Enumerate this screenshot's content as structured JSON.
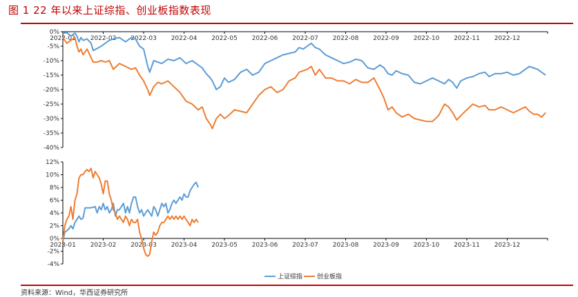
{
  "figure": {
    "title": "图 1 22 年以来上证综指、创业板指数表现",
    "source": "资料来源：Wind，华西证券研究所"
  },
  "colors": {
    "series1": "#5b9bd5",
    "series2": "#ed7d31",
    "accent": "#c00000",
    "axis": "#000000"
  },
  "legend": [
    "上证综指",
    "创业板指"
  ],
  "chart_data": [
    {
      "type": "line",
      "title": "",
      "xlabel": "",
      "ylabel": "",
      "ylim": [
        -40,
        0
      ],
      "y_unit": "%",
      "y_ticks": [
        0,
        -5,
        -10,
        -15,
        -20,
        -25,
        -30,
        -35,
        -40
      ],
      "x_ticks": [
        "2022-01",
        "2022-02",
        "2022-03",
        "2022-04",
        "2022-05",
        "2022-06",
        "2022-07",
        "2022-08",
        "2022-09",
        "2022-10",
        "2022-11",
        "2022-12"
      ],
      "series": [
        {
          "name": "上证综指",
          "x": [
            0.0,
            0.1,
            0.2,
            0.3,
            0.35,
            0.4,
            0.45,
            0.5,
            0.6,
            0.7,
            0.75,
            0.85,
            0.95,
            1.05,
            1.15,
            1.25,
            1.4,
            1.55,
            1.7,
            1.8,
            1.9,
            2.0,
            2.1,
            2.15,
            2.25,
            2.35,
            2.45,
            2.6,
            2.75,
            2.9,
            3.05,
            3.2,
            3.35,
            3.45,
            3.55,
            3.65,
            3.7,
            3.8,
            3.9,
            4.0,
            4.1,
            4.25,
            4.4,
            4.55,
            4.7,
            4.85,
            5.0,
            5.15,
            5.3,
            5.45,
            5.6,
            5.75,
            5.85,
            5.95,
            6.05,
            6.15,
            6.25,
            6.35,
            6.5,
            6.65,
            6.8,
            6.95,
            7.1,
            7.25,
            7.4,
            7.55,
            7.7,
            7.85,
            7.95,
            8.05,
            8.15,
            8.25,
            8.4,
            8.55,
            8.7,
            8.85,
            9.0,
            9.15,
            9.3,
            9.45,
            9.55,
            9.65,
            9.75,
            9.85,
            10.0,
            10.15,
            10.3,
            10.45,
            10.55,
            10.7,
            10.85,
            11.0,
            11.15,
            11.3,
            11.45,
            11.55,
            11.65,
            11.75,
            11.85,
            11.95
          ],
          "values": [
            -0.5,
            -0.3,
            -1.5,
            -0.5,
            -1.5,
            -3.5,
            -2.0,
            -3.0,
            -2.5,
            -4.0,
            -6.5,
            -5.8,
            -5.0,
            -4.0,
            -3.0,
            -2.5,
            -2.0,
            -3.5,
            -2.0,
            -2.5,
            -5.0,
            -6.0,
            -12.0,
            -14.0,
            -10.0,
            -10.5,
            -11.0,
            -9.5,
            -10.0,
            -9.0,
            -11.0,
            -10.0,
            -11.5,
            -12.5,
            -14.5,
            -16.0,
            -17.0,
            -20.0,
            -19.0,
            -16.0,
            -17.5,
            -16.5,
            -14.0,
            -13.0,
            -15.0,
            -14.0,
            -11.0,
            -10.0,
            -9.0,
            -8.0,
            -7.5,
            -7.0,
            -5.5,
            -6.0,
            -5.0,
            -4.0,
            -5.5,
            -6.0,
            -8.0,
            -9.0,
            -10.0,
            -11.0,
            -10.5,
            -9.5,
            -10.0,
            -12.5,
            -13.0,
            -11.5,
            -12.5,
            -14.5,
            -15.0,
            -13.5,
            -14.5,
            -15.0,
            -17.5,
            -18.0,
            -17.0,
            -16.0,
            -17.0,
            -18.0,
            -16.5,
            -17.5,
            -19.5,
            -17.0,
            -16.0,
            -15.5,
            -14.5,
            -14.0,
            -15.5,
            -14.5,
            -14.5,
            -14.0,
            -15.0,
            -14.5,
            -13.0,
            -12.0,
            -12.5,
            -13.0,
            -14.0,
            -15.0
          ]
        },
        {
          "name": "创业板指",
          "x": [
            0.0,
            0.1,
            0.2,
            0.3,
            0.35,
            0.4,
            0.45,
            0.5,
            0.6,
            0.7,
            0.75,
            0.85,
            0.95,
            1.05,
            1.15,
            1.25,
            1.4,
            1.55,
            1.7,
            1.8,
            1.9,
            2.0,
            2.1,
            2.15,
            2.25,
            2.35,
            2.45,
            2.6,
            2.75,
            2.9,
            3.05,
            3.2,
            3.35,
            3.45,
            3.55,
            3.65,
            3.7,
            3.8,
            3.9,
            4.0,
            4.1,
            4.25,
            4.4,
            4.55,
            4.7,
            4.85,
            5.0,
            5.15,
            5.3,
            5.45,
            5.6,
            5.75,
            5.85,
            5.95,
            6.05,
            6.15,
            6.25,
            6.35,
            6.5,
            6.65,
            6.8,
            6.95,
            7.1,
            7.25,
            7.4,
            7.55,
            7.7,
            7.85,
            7.95,
            8.05,
            8.15,
            8.25,
            8.4,
            8.55,
            8.7,
            8.85,
            9.0,
            9.15,
            9.3,
            9.45,
            9.55,
            9.65,
            9.75,
            9.85,
            10.0,
            10.15,
            10.3,
            10.45,
            10.55,
            10.7,
            10.85,
            11.0,
            11.15,
            11.3,
            11.45,
            11.55,
            11.65,
            11.75,
            11.85,
            11.95
          ],
          "values": [
            -2.0,
            -4.0,
            -3.0,
            -2.0,
            -5.0,
            -7.0,
            -6.0,
            -8.0,
            -6.0,
            -9.0,
            -10.5,
            -10.5,
            -10.0,
            -10.5,
            -10.0,
            -13.0,
            -11.0,
            -12.0,
            -13.0,
            -12.5,
            -15.0,
            -17.0,
            -20.0,
            -22.0,
            -19.0,
            -17.5,
            -18.0,
            -17.0,
            -19.0,
            -21.0,
            -24.0,
            -25.0,
            -27.0,
            -26.0,
            -30.0,
            -32.0,
            -33.5,
            -30.0,
            -28.5,
            -30.0,
            -29.0,
            -27.0,
            -27.5,
            -28.0,
            -25.0,
            -22.0,
            -20.0,
            -19.0,
            -21.0,
            -20.0,
            -17.0,
            -16.0,
            -14.0,
            -13.5,
            -13.0,
            -12.0,
            -15.0,
            -13.0,
            -16.0,
            -16.0,
            -17.0,
            -17.0,
            -18.0,
            -16.5,
            -17.5,
            -17.5,
            -16.0,
            -20.0,
            -23.0,
            -27.0,
            -26.0,
            -28.0,
            -29.5,
            -28.5,
            -30.0,
            -30.5,
            -31.0,
            -31.0,
            -29.0,
            -25.0,
            -26.0,
            -28.0,
            -30.5,
            -29.0,
            -27.0,
            -25.0,
            -26.0,
            -25.5,
            -27.0,
            -27.0,
            -26.0,
            -27.0,
            -28.0,
            -27.0,
            -26.0,
            -27.5,
            -28.5,
            -28.5,
            -29.5,
            -28.0
          ]
        }
      ]
    },
    {
      "type": "line",
      "title": "",
      "xlabel": "",
      "ylabel": "",
      "ylim": [
        -4,
        12
      ],
      "y_unit": "%",
      "y_ticks": [
        12,
        10,
        8,
        6,
        4,
        2,
        0,
        -2,
        -4
      ],
      "x_ticks": [
        "2023-01",
        "2023-02",
        "2023-03",
        "2023-04",
        "2023-05",
        "2023-06",
        "2023-07",
        "2023-08",
        "2023-09",
        "2023-10",
        "2023-11",
        "2023-12"
      ],
      "series": [
        {
          "name": "上证综指",
          "x": [
            0.0,
            0.05,
            0.1,
            0.15,
            0.2,
            0.25,
            0.3,
            0.35,
            0.4,
            0.45,
            0.5,
            0.55,
            0.6,
            0.65,
            0.7,
            0.75,
            0.8,
            0.85,
            0.9,
            0.95,
            1.0,
            1.05,
            1.1,
            1.15,
            1.2,
            1.25,
            1.3,
            1.35,
            1.4,
            1.45,
            1.5,
            1.55,
            1.6,
            1.65,
            1.7,
            1.75,
            1.8,
            1.85,
            1.9,
            1.95,
            2.0,
            2.05,
            2.1,
            2.15,
            2.2,
            2.25,
            2.3,
            2.35,
            2.4,
            2.45,
            2.5,
            2.55,
            2.6,
            2.65,
            2.7,
            2.75,
            2.8,
            2.85,
            2.9,
            2.95,
            3.0,
            3.05,
            3.1,
            3.15,
            3.2,
            3.25,
            3.3,
            3.35
          ],
          "values": [
            -0.5,
            1.0,
            1.2,
            1.5,
            2.0,
            1.5,
            2.5,
            3.0,
            3.5,
            3.0,
            3.2,
            4.8,
            4.8,
            4.8,
            4.8,
            4.9,
            5.0,
            4.0,
            5.0,
            4.5,
            5.5,
            4.5,
            5.0,
            4.0,
            4.5,
            5.5,
            3.5,
            4.5,
            4.5,
            5.0,
            5.5,
            4.0,
            5.0,
            4.0,
            5.5,
            6.5,
            6.5,
            5.0,
            4.0,
            4.5,
            3.5,
            4.0,
            4.5,
            4.0,
            3.5,
            5.0,
            4.5,
            3.5,
            4.5,
            5.5,
            5.0,
            5.5,
            4.0,
            4.5,
            5.5,
            6.0,
            5.5,
            6.0,
            6.5,
            6.0,
            7.0,
            6.5,
            6.5,
            7.5,
            8.0,
            8.5,
            8.8,
            8.0
          ]
        },
        {
          "name": "创业板指",
          "x": [
            0.0,
            0.05,
            0.1,
            0.15,
            0.2,
            0.25,
            0.3,
            0.35,
            0.4,
            0.45,
            0.5,
            0.55,
            0.6,
            0.65,
            0.7,
            0.75,
            0.8,
            0.85,
            0.9,
            0.95,
            1.0,
            1.05,
            1.1,
            1.15,
            1.2,
            1.25,
            1.3,
            1.35,
            1.4,
            1.45,
            1.5,
            1.55,
            1.6,
            1.65,
            1.7,
            1.75,
            1.8,
            1.85,
            1.9,
            1.95,
            2.0,
            2.05,
            2.1,
            2.15,
            2.2,
            2.25,
            2.3,
            2.35,
            2.4,
            2.45,
            2.5,
            2.55,
            2.6,
            2.65,
            2.7,
            2.75,
            2.8,
            2.85,
            2.9,
            2.95,
            3.0,
            3.05,
            3.1,
            3.15,
            3.2,
            3.25,
            3.3,
            3.35
          ],
          "values": [
            -0.5,
            2.0,
            3.0,
            3.5,
            5.0,
            3.0,
            6.0,
            7.0,
            9.5,
            10.0,
            10.0,
            10.5,
            10.8,
            10.5,
            11.0,
            9.5,
            10.5,
            10.0,
            9.5,
            8.5,
            7.0,
            9.0,
            9.0,
            7.0,
            6.0,
            4.5,
            4.0,
            3.0,
            3.5,
            3.0,
            2.5,
            3.5,
            3.0,
            2.0,
            3.0,
            2.5,
            2.5,
            3.0,
            1.0,
            0.0,
            -1.5,
            -2.5,
            -2.8,
            -2.5,
            -0.5,
            1.0,
            0.5,
            1.0,
            2.0,
            2.5,
            2.5,
            3.0,
            3.5,
            3.0,
            3.5,
            3.0,
            3.5,
            3.0,
            3.5,
            3.0,
            3.5,
            3.0,
            2.5,
            2.0,
            3.0,
            2.5,
            3.0,
            2.5
          ]
        }
      ]
    }
  ]
}
